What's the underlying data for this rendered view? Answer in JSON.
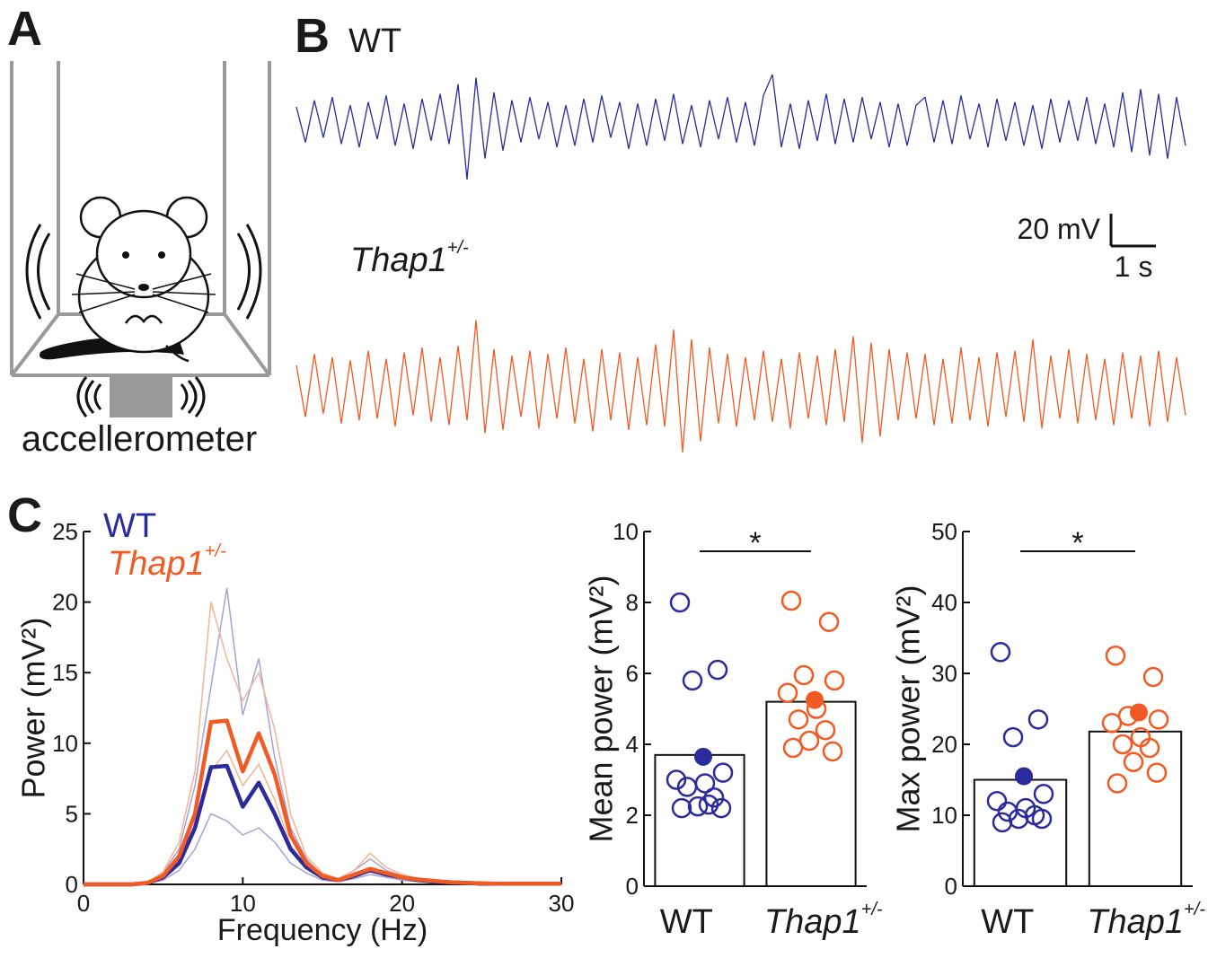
{
  "panel_labels": [
    "A",
    "B",
    "C"
  ],
  "diagram": {
    "label": "accellerometer"
  },
  "chart_data": [
    {
      "type": "trace",
      "xlim": [
        0,
        20
      ],
      "ylim": [
        -45,
        45
      ],
      "x": [
        0,
        0.2,
        0.4,
        0.6,
        0.8,
        1,
        1.2,
        1.4,
        1.6,
        1.8,
        2,
        2.2,
        2.4,
        2.6,
        2.8,
        3,
        3.2,
        3.4,
        3.6,
        3.8,
        4,
        4.2,
        4.4,
        4.6,
        4.8,
        5,
        5.2,
        5.4,
        5.6,
        5.8,
        6,
        6.2,
        6.4,
        6.6,
        6.8,
        7,
        7.2,
        7.4,
        7.6,
        7.8,
        8,
        8.2,
        8.4,
        8.6,
        8.8,
        9,
        9.2,
        9.4,
        9.6,
        9.8,
        10,
        10.2,
        10.4,
        10.6,
        10.8,
        11,
        11.2,
        11.4,
        11.6,
        11.8,
        12,
        12.2,
        12.4,
        12.6,
        12.8,
        13,
        13.2,
        13.4,
        13.6,
        13.8,
        14,
        14.2,
        14.4,
        14.6,
        14.8,
        15,
        15.2,
        15.4,
        15.6,
        15.8,
        16,
        16.2,
        16.4,
        16.6,
        16.8,
        17,
        17.2,
        17.4,
        17.6,
        17.8,
        18,
        18.2,
        18.4,
        18.6,
        18.8,
        19,
        19.2,
        19.4,
        19.6,
        19.8
      ],
      "series": [
        {
          "name": "WT",
          "color": "#2b2b9c",
          "values": [
            10,
            -12,
            14,
            -9,
            16,
            -13,
            11,
            -15,
            13,
            -10,
            17,
            -14,
            12,
            -16,
            15,
            -11,
            18,
            -13,
            24,
            -35,
            28,
            -22,
            19,
            -17,
            14,
            -12,
            16,
            -10,
            13,
            -15,
            11,
            -14,
            15,
            -12,
            17,
            -9,
            13,
            -16,
            12,
            -14,
            15,
            -11,
            18,
            -13,
            11,
            -15,
            14,
            -10,
            16,
            -12,
            13,
            -14,
            17,
            30,
            -15,
            12,
            -16,
            14,
            -11,
            18,
            -13,
            15,
            -12,
            16,
            -10,
            13,
            -15,
            12,
            -14,
            11,
            16,
            -12,
            14,
            -13,
            17,
            -10,
            12,
            -15,
            15,
            -11,
            13,
            -14,
            11,
            -16,
            15,
            -12,
            14,
            -11,
            16,
            -13,
            12,
            -15,
            19,
            -18,
            21,
            -20,
            18,
            -22,
            16,
            -14
          ]
        },
        {
          "name": "Thap1",
          "name_superscript": "+/-",
          "color": "#f15a22",
          "values": [
            14,
            -18,
            21,
            -16,
            19,
            -22,
            17,
            -20,
            23,
            -19,
            18,
            -24,
            22,
            -17,
            25,
            -21,
            19,
            -23,
            26,
            -20,
            42,
            -28,
            24,
            -26,
            20,
            -18,
            23,
            -25,
            21,
            -19,
            25,
            -22,
            18,
            -27,
            24,
            -20,
            22,
            -26,
            19,
            -23,
            27,
            -24,
            36,
            -40,
            30,
            -33,
            25,
            -22,
            21,
            -24,
            19,
            -20,
            23,
            -21,
            18,
            -25,
            22,
            -19,
            20,
            -23,
            24,
            -21,
            32,
            -34,
            28,
            -30,
            24,
            -20,
            22,
            -19,
            21,
            -23,
            18,
            -22,
            25,
            -20,
            19,
            -24,
            22,
            -18,
            23,
            -21,
            30,
            -25,
            20,
            -19,
            24,
            -22,
            21,
            -20,
            18,
            -23,
            22,
            -19,
            20,
            -24,
            23,
            -21,
            19,
            -17
          ]
        }
      ],
      "scale_bar": {
        "y_value": 20,
        "y_label": "20 mV",
        "x_value": 1,
        "x_label": "1 s"
      }
    },
    {
      "type": "line",
      "xlabel": "Frequency (Hz)",
      "ylabel": "Power (mV²)",
      "x": [
        0,
        1,
        2,
        3,
        4,
        5,
        6,
        7,
        8,
        9,
        10,
        11,
        12,
        13,
        14,
        15,
        16,
        17,
        18,
        19,
        20,
        21,
        22,
        23,
        24,
        25,
        26,
        27,
        28,
        29,
        30
      ],
      "xlim": [
        0,
        30
      ],
      "xticks": [
        0,
        10,
        20,
        30
      ],
      "ylim": [
        0,
        25
      ],
      "yticks": [
        0,
        5,
        10,
        15,
        20,
        25
      ],
      "series": [
        {
          "name": "WT",
          "color": "#2b2b9c",
          "values": [
            0,
            0,
            0,
            0,
            0.1,
            0.5,
            1.5,
            4,
            8.3,
            8.4,
            5.5,
            7.2,
            5,
            2.5,
            1.2,
            0.5,
            0.3,
            0.6,
            1,
            0.7,
            0.5,
            0.3,
            0.2,
            0.15,
            0.1,
            0.05,
            0.05,
            0.05,
            0.05,
            0.05,
            0.05
          ]
        },
        {
          "name": "Thap1",
          "name_superscript": "+/-",
          "color": "#f15a22",
          "values": [
            0,
            0,
            0,
            0,
            0.1,
            0.6,
            2,
            5,
            11.5,
            11.6,
            8,
            10.7,
            7.8,
            3.5,
            1.5,
            0.6,
            0.3,
            0.7,
            1.1,
            0.8,
            0.5,
            0.35,
            0.25,
            0.15,
            0.1,
            0.08,
            0.05,
            0.05,
            0.05,
            0.05,
            0.05
          ]
        }
      ],
      "individual": [
        {
          "color": "#a3a3d6",
          "values": [
            0,
            0,
            0,
            0,
            0.1,
            0.8,
            2.5,
            7,
            14,
            21,
            12,
            16,
            9,
            4,
            1.8,
            0.6,
            0.4,
            1,
            1.8,
            1,
            0.6,
            0.4,
            0.2,
            0.1,
            0.1,
            0.05,
            0.05,
            0.05,
            0.05,
            0.05,
            0.05
          ]
        },
        {
          "color": "#a3a3d6",
          "values": [
            0,
            0,
            0,
            0,
            0.05,
            0.3,
            1,
            2.5,
            5,
            4.5,
            3.5,
            4,
            3,
            1.5,
            0.8,
            0.3,
            0.2,
            0.4,
            0.7,
            0.5,
            0.3,
            0.2,
            0.1,
            0.1,
            0.05,
            0.05,
            0.05,
            0.05,
            0.05,
            0.05,
            0.05
          ]
        },
        {
          "color": "#f7b293",
          "values": [
            0,
            0,
            0,
            0,
            0.1,
            0.9,
            3,
            8,
            20,
            16,
            13,
            15,
            11,
            5,
            2,
            0.8,
            0.4,
            1,
            2.2,
            1.2,
            0.7,
            0.4,
            0.2,
            0.1,
            0.1,
            0.05,
            0.05,
            0.05,
            0.05,
            0.05,
            0.05
          ]
        },
        {
          "color": "#f7b293",
          "values": [
            0,
            0,
            0,
            0,
            0.1,
            0.5,
            1.6,
            4,
            8,
            9.5,
            7,
            8.5,
            6,
            2.8,
            1.2,
            0.5,
            0.3,
            0.6,
            0.9,
            0.6,
            0.4,
            0.3,
            0.2,
            0.1,
            0.05,
            0.05,
            0.05,
            0.05,
            0.05,
            0.05,
            0.05
          ]
        }
      ]
    },
    {
      "type": "dotbar",
      "ylabel": "Mean power (mV²)",
      "ylim": [
        0,
        10
      ],
      "yticks": [
        0,
        2,
        4,
        6,
        8,
        10
      ],
      "categories": [
        {
          "name": "WT"
        },
        {
          "name": "Thap1",
          "superscript": "+/-"
        }
      ],
      "colors": [
        "#2b2b9c",
        "#f15a22"
      ],
      "values": [
        3.7,
        5.2
      ],
      "mean_points": [
        3.65,
        5.25
      ],
      "points": [
        [
          8.0,
          6.1,
          5.8,
          3.2,
          3.0,
          2.9,
          2.8,
          2.5,
          2.25,
          2.2,
          2.2,
          2.3
        ],
        [
          8.05,
          7.45,
          5.95,
          5.8,
          5.45,
          5.0,
          4.7,
          4.4,
          4.1,
          3.8,
          3.9
        ]
      ],
      "significance": "*"
    },
    {
      "type": "dotbar",
      "ylabel": "Max power (mV²)",
      "ylim": [
        0,
        50
      ],
      "yticks": [
        0,
        10,
        20,
        30,
        40,
        50
      ],
      "categories": [
        {
          "name": "WT"
        },
        {
          "name": "Thap1",
          "superscript": "+/-"
        }
      ],
      "colors": [
        "#2b2b9c",
        "#f15a22"
      ],
      "values": [
        15,
        21.8
      ],
      "mean_points": [
        15.5,
        24.5
      ],
      "points": [
        [
          33,
          23.5,
          21,
          13,
          12,
          11,
          10.5,
          10,
          9.5,
          9.5,
          9
        ],
        [
          32.5,
          29.5,
          24,
          23.5,
          23,
          21,
          20,
          19.5,
          17.5,
          16,
          14.5
        ]
      ],
      "significance": "*"
    }
  ]
}
